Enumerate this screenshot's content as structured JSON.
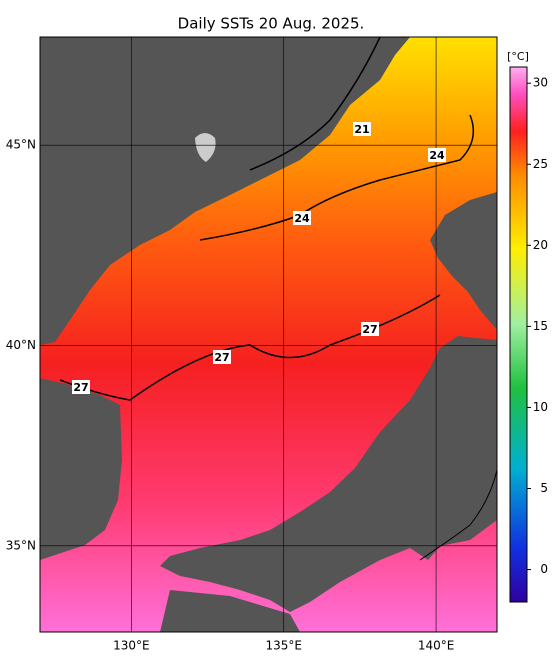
{
  "title": "Daily SSTs 20 Aug. 2025.",
  "map": {
    "lonlim": [
      127,
      142
    ],
    "latlim": [
      32.85,
      47.7
    ],
    "lon_ticks": [
      {
        "value": 130,
        "label": "130°E"
      },
      {
        "value": 135,
        "label": "135°E"
      },
      {
        "value": 140,
        "label": "140°E"
      }
    ],
    "lat_ticks": [
      {
        "value": 45,
        "label": "45°N"
      },
      {
        "value": 40,
        "label": "40°N"
      },
      {
        "value": 35,
        "label": "35°N"
      }
    ]
  },
  "colorbar": {
    "unit": "[°C]",
    "lim": [
      -2,
      31
    ],
    "ticks": [
      0,
      5,
      10,
      15,
      20,
      25,
      30
    ]
  },
  "contour_labels": [
    21,
    24,
    24,
    27,
    27,
    27
  ]
}
